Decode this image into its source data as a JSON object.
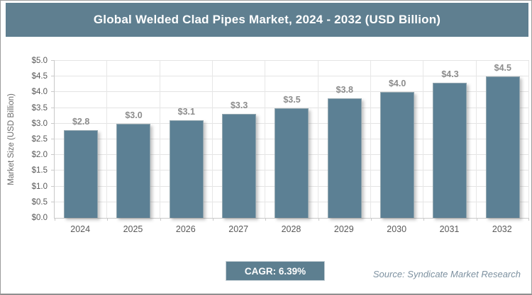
{
  "title_bar": {
    "title": "Global Welded Clad Pipes Market, 2024 - 2032 (USD Billion)"
  },
  "chart_data": {
    "type": "bar",
    "title": "Global Welded Clad Pipes Market, 2024 - 2032 (USD Billion)",
    "categories": [
      "2024",
      "2025",
      "2026",
      "2027",
      "2028",
      "2029",
      "2030",
      "2031",
      "2032"
    ],
    "values": [
      2.8,
      3.0,
      3.1,
      3.3,
      3.5,
      3.8,
      4.0,
      4.3,
      4.5
    ],
    "bar_labels": [
      "$2.8",
      "$3.0",
      "$3.1",
      "$3.3",
      "$3.5",
      "$3.8",
      "$4.0",
      "$4.3",
      "$4.5"
    ],
    "xlabel": "",
    "ylabel": "Market Size (USD Billion)",
    "ylim": [
      0,
      5
    ],
    "ytick_step": 0.5,
    "ytick_labels": [
      "$0.0",
      "$0.5",
      "$1.0",
      "$1.5",
      "$2.0",
      "$2.5",
      "$3.0",
      "$3.5",
      "$4.0",
      "$4.5",
      "$5.0"
    ],
    "grid": true,
    "legend": false
  },
  "footer": {
    "cagr_label": "CAGR: 6.39%",
    "source": "Source: Syndicate Market Research"
  },
  "colors": {
    "header_bg": "#5f7f90",
    "bar_fill": "#5c8094",
    "cagr_bg": "#5d7f90",
    "grid_line": "#e4e4e4",
    "axis_line": "#c9c9c9",
    "label_gray": "#8c8c8c"
  }
}
